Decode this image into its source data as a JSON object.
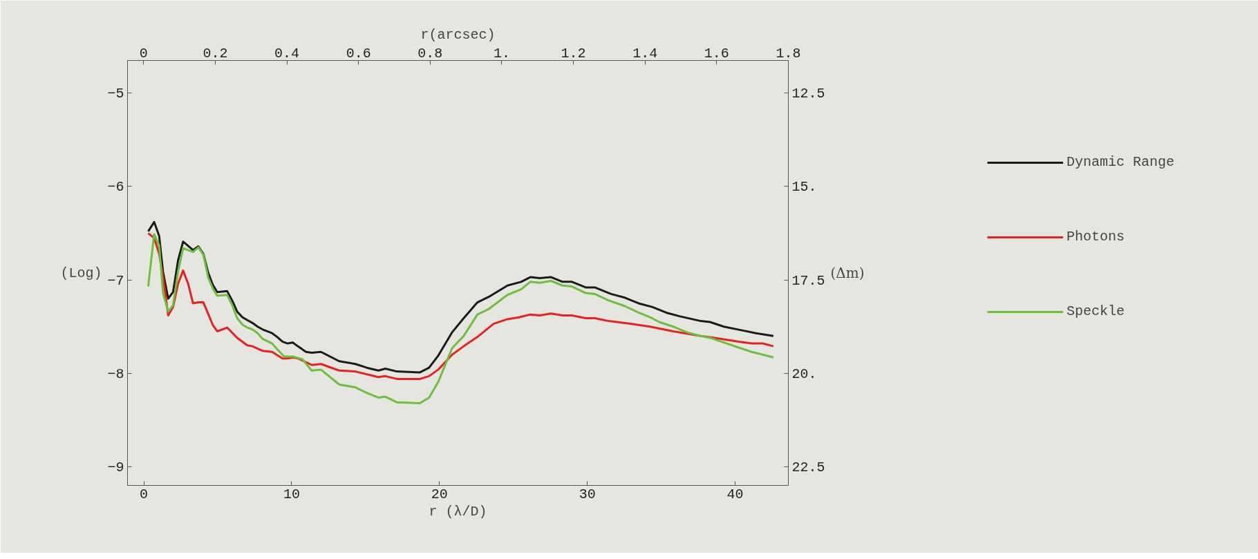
{
  "chart_data": {
    "type": "line",
    "xlabel": "r (λ/D)",
    "x2label": "r(arcsec)",
    "ylabel": "(Log)",
    "y2label": "(Δm)",
    "xlim": [
      -1.1,
      43.6
    ],
    "xticks": [
      0,
      10,
      20,
      30,
      40
    ],
    "x2lim": [
      -0.045,
      1.8
    ],
    "x2ticks": [
      0,
      0.2,
      0.4,
      0.6,
      0.8,
      {
        "value": 1,
        "label": "1."
      },
      1.2,
      1.4,
      1.6,
      1.8
    ],
    "ylim": [
      -9.2,
      -4.65
    ],
    "yticks": [
      -9,
      -8,
      -7,
      -6,
      -5
    ],
    "y2lim": [
      23.0,
      11.625
    ],
    "y2ticks": [
      12.5,
      {
        "value": 15,
        "label": "15."
      },
      17.5,
      {
        "value": 20,
        "label": "20."
      },
      22.5
    ],
    "legend": "right",
    "series": [
      {
        "name": "Dynamic Range",
        "color": "#1a1a1a",
        "x": [
          0.3,
          0.7,
          1.04,
          1.3,
          1.65,
          1.98,
          2.32,
          2.66,
          3.33,
          3.69,
          4.03,
          4.35,
          4.66,
          4.97,
          5.64,
          5.98,
          6.32,
          6.68,
          7.0,
          7.35,
          7.7,
          8.04,
          8.68,
          9.02,
          9.38,
          9.72,
          10.08,
          10.42,
          10.97,
          11.36,
          11.98,
          13.22,
          14.31,
          15.09,
          15.87,
          16.34,
          17.12,
          18.68,
          19.3,
          19.92,
          20.86,
          21.64,
          22.57,
          23.35,
          24.6,
          25.53,
          26.15,
          26.78,
          27.55,
          28.33,
          28.96,
          29.89,
          30.51,
          31.6,
          32.54,
          33.47,
          34.41,
          35.34,
          36.28,
          37.68,
          38.3,
          39.24,
          40.48,
          41.42,
          42.59
        ],
        "values": [
          -6.48,
          -6.38,
          -6.53,
          -6.91,
          -7.2,
          -7.13,
          -6.79,
          -6.59,
          -6.68,
          -6.64,
          -6.72,
          -6.92,
          -7.05,
          -7.13,
          -7.12,
          -7.22,
          -7.34,
          -7.4,
          -7.43,
          -7.46,
          -7.5,
          -7.53,
          -7.57,
          -7.61,
          -7.66,
          -7.68,
          -7.67,
          -7.71,
          -7.77,
          -7.78,
          -7.77,
          -7.87,
          -7.9,
          -7.94,
          -7.97,
          -7.95,
          -7.98,
          -7.99,
          -7.94,
          -7.81,
          -7.56,
          -7.41,
          -7.24,
          -7.18,
          -7.06,
          -7.02,
          -6.97,
          -6.98,
          -6.97,
          -7.02,
          -7.02,
          -7.08,
          -7.08,
          -7.15,
          -7.19,
          -7.25,
          -7.29,
          -7.35,
          -7.39,
          -7.44,
          -7.45,
          -7.5,
          -7.54,
          -7.57,
          -7.6
        ]
      },
      {
        "name": "Photons",
        "color": "#e8201e",
        "x": [
          0.3,
          0.7,
          1.04,
          1.3,
          1.65,
          1.98,
          2.32,
          2.66,
          3.0,
          3.33,
          3.69,
          4.03,
          4.35,
          4.66,
          4.97,
          5.64,
          6.32,
          7.0,
          7.35,
          8.04,
          8.68,
          9.38,
          9.72,
          10.1,
          10.42,
          11.36,
          11.98,
          13.22,
          14.31,
          15.87,
          16.34,
          17.12,
          18.68,
          19.3,
          19.92,
          20.86,
          21.64,
          22.57,
          23.66,
          24.6,
          25.37,
          26.15,
          26.78,
          27.55,
          28.33,
          28.96,
          29.89,
          30.51,
          31.45,
          33.0,
          34.25,
          35.81,
          37.68,
          38.61,
          40.17,
          41.11,
          41.88,
          42.59
        ],
        "values": [
          -6.5,
          -6.55,
          -6.72,
          -6.96,
          -7.38,
          -7.29,
          -7.04,
          -6.9,
          -7.04,
          -7.25,
          -7.24,
          -7.24,
          -7.36,
          -7.48,
          -7.55,
          -7.51,
          -7.62,
          -7.7,
          -7.71,
          -7.76,
          -7.77,
          -7.84,
          -7.84,
          -7.83,
          -7.84,
          -7.91,
          -7.9,
          -7.97,
          -7.98,
          -8.04,
          -8.03,
          -8.06,
          -8.06,
          -8.03,
          -7.96,
          -7.8,
          -7.71,
          -7.61,
          -7.47,
          -7.42,
          -7.4,
          -7.37,
          -7.38,
          -7.36,
          -7.38,
          -7.38,
          -7.41,
          -7.41,
          -7.44,
          -7.47,
          -7.5,
          -7.55,
          -7.6,
          -7.62,
          -7.66,
          -7.68,
          -7.68,
          -7.71
        ]
      },
      {
        "name": "Speckle",
        "color": "#6cbf3c",
        "x": [
          0.3,
          0.7,
          1.04,
          1.3,
          1.65,
          1.98,
          2.32,
          2.66,
          3.33,
          3.69,
          4.03,
          4.35,
          4.66,
          4.97,
          5.64,
          5.98,
          6.32,
          6.68,
          7.0,
          7.35,
          7.7,
          8.04,
          8.68,
          9.02,
          9.49,
          10.1,
          10.73,
          11.36,
          11.98,
          13.22,
          14.31,
          15.09,
          15.87,
          16.34,
          17.12,
          18.68,
          19.3,
          19.92,
          20.86,
          21.64,
          22.57,
          23.35,
          24.6,
          25.53,
          26.15,
          26.78,
          27.55,
          28.33,
          28.96,
          29.89,
          30.51,
          31.45,
          32.54,
          33.47,
          34.25,
          34.87,
          35.81,
          36.74,
          37.68,
          38.3,
          39.24,
          40.17,
          41.11,
          41.88,
          42.59
        ],
        "values": [
          -7.07,
          -6.51,
          -6.63,
          -7.14,
          -7.34,
          -7.27,
          -6.91,
          -6.66,
          -6.7,
          -6.65,
          -6.73,
          -6.97,
          -7.09,
          -7.17,
          -7.16,
          -7.27,
          -7.41,
          -7.48,
          -7.51,
          -7.53,
          -7.57,
          -7.63,
          -7.68,
          -7.74,
          -7.82,
          -7.82,
          -7.85,
          -7.97,
          -7.96,
          -8.12,
          -8.15,
          -8.21,
          -8.26,
          -8.25,
          -8.31,
          -8.32,
          -8.26,
          -8.09,
          -7.73,
          -7.6,
          -7.37,
          -7.31,
          -7.16,
          -7.1,
          -7.02,
          -7.03,
          -7.01,
          -7.06,
          -7.07,
          -7.14,
          -7.15,
          -7.22,
          -7.28,
          -7.35,
          -7.4,
          -7.45,
          -7.5,
          -7.56,
          -7.6,
          -7.62,
          -7.67,
          -7.72,
          -7.77,
          -7.8,
          -7.83
        ]
      }
    ]
  }
}
